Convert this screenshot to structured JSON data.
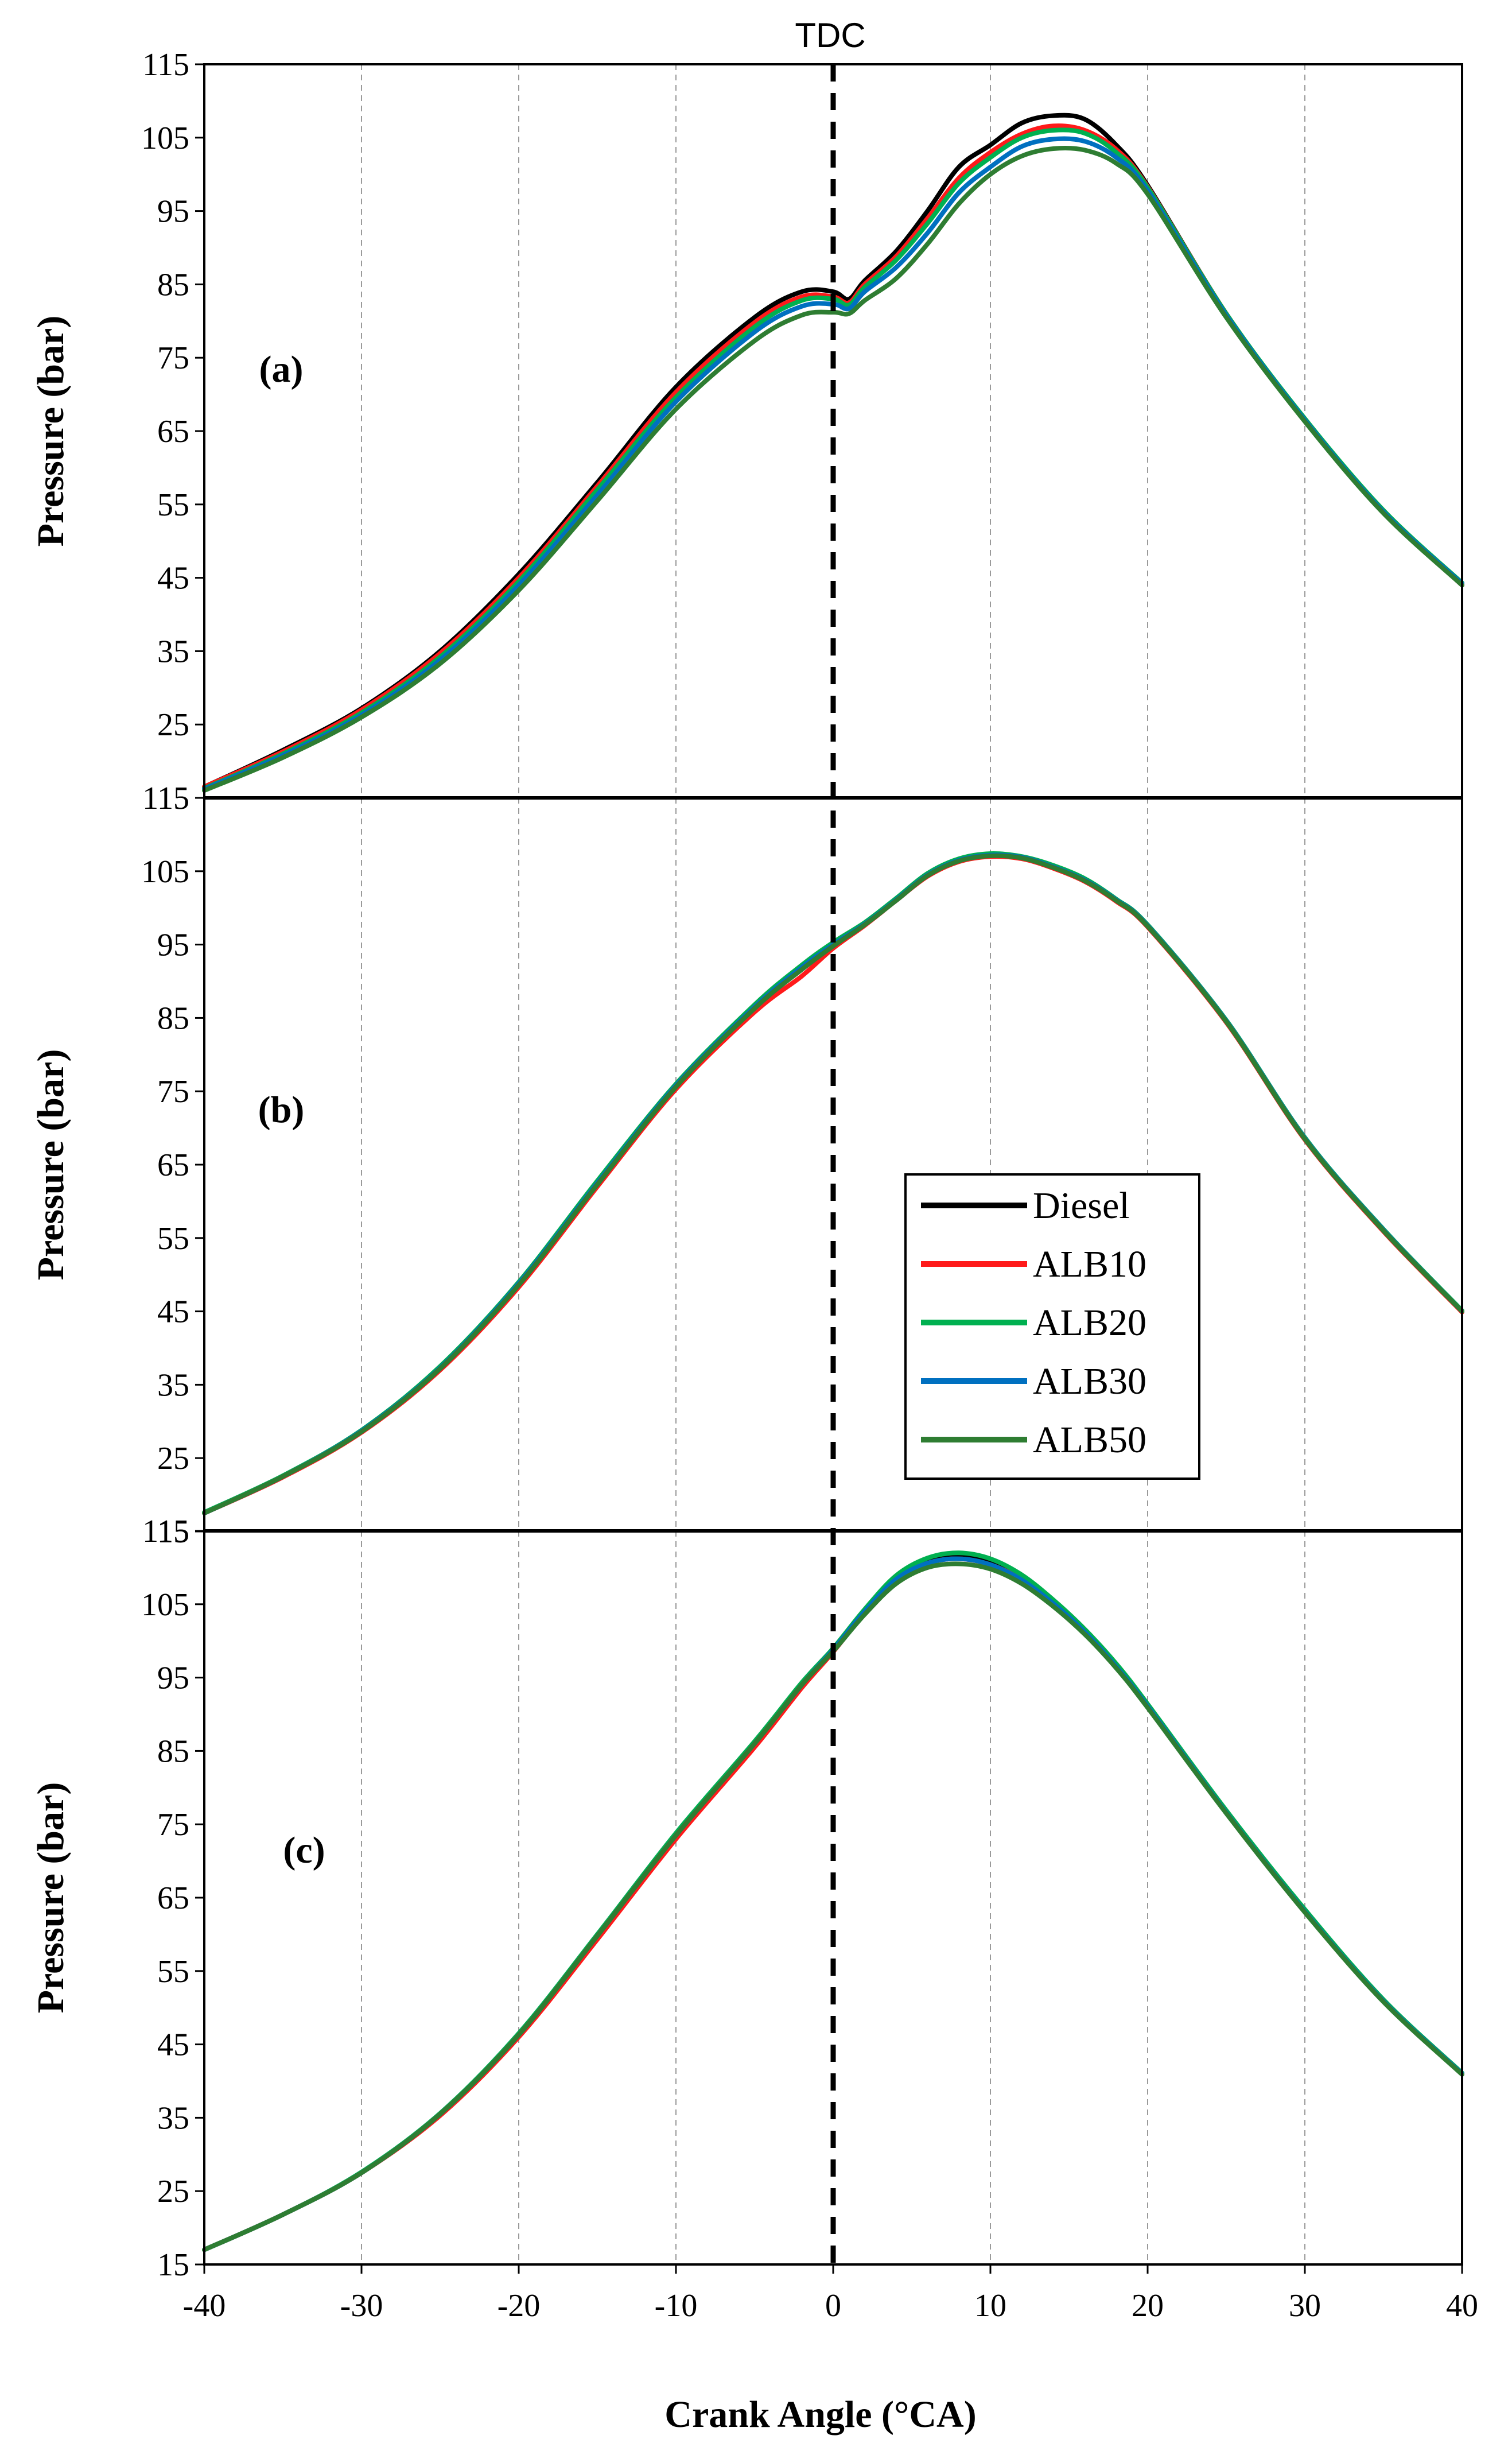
{
  "chart_data": {
    "type": "line",
    "title": "",
    "tdc_label": "TDC",
    "xlabel": "Crank Angle (°CA)",
    "ylabel": "Pressure (bar)",
    "xlim": [
      -40,
      40
    ],
    "ylim": [
      15,
      115
    ],
    "xticks": [
      -40,
      -30,
      -20,
      -10,
      0,
      10,
      20,
      30,
      40
    ],
    "yticks": [
      15,
      25,
      35,
      45,
      55,
      65,
      75,
      85,
      95,
      105,
      115
    ],
    "vertical_line_x": 0,
    "legend_position": "inside-right of panel (b)",
    "series_styles": [
      {
        "name": "Diesel",
        "color": "#000000"
      },
      {
        "name": "ALB10",
        "color": "#ff1a1a"
      },
      {
        "name": "ALB20",
        "color": "#00b050"
      },
      {
        "name": "ALB30",
        "color": "#0070c0"
      },
      {
        "name": "ALB50",
        "color": "#2e7d32"
      }
    ],
    "panels": [
      {
        "label": "(a)",
        "series": [
          {
            "name": "Diesel",
            "x": [
              -40,
              -35,
              -30,
              -25,
              -20,
              -15,
              -10,
              -5,
              -2,
              0,
              1,
              2,
              4,
              6,
              8,
              10,
              12,
              14,
              16,
              18,
              20,
              25,
              30,
              35,
              40
            ],
            "y": [
              16.5,
              21.5,
              27.2,
              35,
              45.5,
              58,
              71,
              80.5,
              84,
              84,
              83,
              85.5,
              89.5,
              95,
              101,
              104,
              107,
              108,
              107.5,
              104,
              98.5,
              81,
              66.5,
              54,
              44
            ]
          },
          {
            "name": "ALB10",
            "x": [
              -40,
              -35,
              -30,
              -25,
              -20,
              -15,
              -10,
              -5,
              -2,
              0,
              1,
              2,
              4,
              6,
              8,
              10,
              12,
              14,
              16,
              18,
              20,
              25,
              30,
              35,
              40
            ],
            "y": [
              16.5,
              21.3,
              27,
              34.7,
              45,
              57.5,
              70.3,
              79.8,
              83.3,
              83.3,
              82.5,
              85,
              88.8,
              94,
              99.5,
              103,
              105.5,
              106.6,
              106,
              103.4,
              98.3,
              81,
              66.6,
              54,
              44
            ]
          },
          {
            "name": "ALB20",
            "x": [
              -40,
              -35,
              -30,
              -25,
              -20,
              -15,
              -10,
              -5,
              -2,
              0,
              1,
              2,
              4,
              6,
              8,
              10,
              12,
              14,
              16,
              18,
              20,
              25,
              30,
              35,
              40
            ],
            "y": [
              16.3,
              21,
              26.6,
              34.2,
              44.5,
              57,
              69.6,
              79.2,
              82.8,
              83,
              82.2,
              84.6,
              88.3,
              93.3,
              98.8,
              102.3,
              105,
              106,
              105.6,
              103,
              98.2,
              81,
              66.7,
              54.2,
              44.3
            ]
          },
          {
            "name": "ALB30",
            "x": [
              -40,
              -35,
              -30,
              -25,
              -20,
              -15,
              -10,
              -5,
              -2,
              0,
              1,
              2,
              4,
              6,
              8,
              10,
              12,
              14,
              16,
              18,
              20,
              25,
              30,
              35,
              40
            ],
            "y": [
              16.2,
              20.8,
              26.3,
              33.8,
              44,
              56.3,
              69,
              78.5,
              82,
              82.3,
              81.7,
              84,
              87.3,
              92,
              97.5,
              101,
              103.8,
              104.8,
              104.5,
              102.3,
              97.8,
              80.8,
              66.5,
              54,
              44.2
            ]
          },
          {
            "name": "ALB50",
            "x": [
              -40,
              -35,
              -30,
              -25,
              -20,
              -15,
              -10,
              -5,
              -2,
              0,
              1,
              2,
              4,
              6,
              8,
              10,
              12,
              14,
              16,
              18,
              20,
              25,
              30,
              35,
              40
            ],
            "y": [
              16,
              20.5,
              26,
              33.3,
              43.3,
              55.5,
              68,
              77.3,
              80.8,
              81.2,
              81,
              82.8,
              85.8,
              90.5,
              96,
              100,
              102.5,
              103.5,
              103.3,
              101.5,
              97.3,
              80.5,
              66.3,
              53.8,
              44
            ]
          }
        ]
      },
      {
        "label": "(b)",
        "series": [
          {
            "name": "Diesel",
            "x": [
              -40,
              -35,
              -30,
              -25,
              -20,
              -15,
              -10,
              -5,
              -2,
              0,
              2,
              4,
              6,
              8,
              10,
              12,
              14,
              16,
              18,
              20,
              25,
              30,
              35,
              40
            ],
            "y": [
              17.5,
              22.5,
              28.7,
              37.3,
              48.8,
              62.5,
              75.8,
              86.5,
              91.8,
              95,
              97.8,
              101,
              104.4,
              106.4,
              107.1,
              106.8,
              105.5,
              103.7,
              101,
              97.5,
              84.5,
              68.5,
              56,
              45
            ]
          },
          {
            "name": "ALB10",
            "x": [
              -40,
              -35,
              -30,
              -25,
              -20,
              -15,
              -10,
              -5,
              -2,
              0,
              2,
              4,
              6,
              8,
              10,
              12,
              14,
              16,
              18,
              20,
              25,
              30,
              35,
              40
            ],
            "y": [
              17.5,
              22.4,
              28.5,
              37,
              48.3,
              62,
              75.3,
              85.8,
              90.7,
              94.5,
              97.6,
              101,
              104.3,
              106.3,
              107,
              106.7,
              105.4,
              103.6,
              100.9,
              97.4,
              84.4,
              68.4,
              55.9,
              44.9
            ]
          },
          {
            "name": "ALB20",
            "x": [
              -40,
              -35,
              -30,
              -25,
              -20,
              -15,
              -10,
              -5,
              -2,
              0,
              2,
              4,
              6,
              8,
              10,
              12,
              14,
              16,
              18,
              20,
              25,
              30,
              35,
              40
            ],
            "y": [
              17.6,
              22.6,
              28.8,
              37.5,
              49,
              62.8,
              76,
              86.8,
              92.2,
              95.3,
              98,
              101.3,
              104.7,
              106.7,
              107.4,
              107,
              105.8,
              104,
              101.2,
              97.7,
              84.7,
              68.7,
              56.2,
              45.1
            ]
          },
          {
            "name": "ALB30",
            "x": [
              -40,
              -35,
              -30,
              -25,
              -20,
              -15,
              -10,
              -5,
              -2,
              0,
              2,
              4,
              6,
              8,
              10,
              12,
              14,
              16,
              18,
              20,
              25,
              30,
              35,
              40
            ],
            "y": [
              17.5,
              22.5,
              28.7,
              37.3,
              48.8,
              62.5,
              75.8,
              86.5,
              91.9,
              95,
              97.8,
              101.1,
              104.5,
              106.5,
              107.2,
              106.9,
              105.6,
              103.8,
              101.1,
              97.6,
              84.6,
              68.6,
              56.1,
              45
            ]
          },
          {
            "name": "ALB50",
            "x": [
              -40,
              -35,
              -30,
              -25,
              -20,
              -15,
              -10,
              -5,
              -2,
              0,
              2,
              4,
              6,
              8,
              10,
              12,
              14,
              16,
              18,
              20,
              25,
              30,
              35,
              40
            ],
            "y": [
              17.5,
              22.5,
              28.6,
              37.2,
              48.6,
              62.3,
              75.6,
              86.3,
              91.6,
              94.8,
              97.7,
              101,
              104.4,
              106.4,
              107.1,
              106.8,
              105.5,
              103.7,
              101,
              97.5,
              84.5,
              68.5,
              56,
              45
            ]
          }
        ]
      },
      {
        "label": "(c)",
        "series": [
          {
            "name": "Diesel",
            "x": [
              -40,
              -35,
              -30,
              -25,
              -20,
              -15,
              -10,
              -5,
              -2,
              0,
              2,
              4,
              6,
              8,
              10,
              12,
              14,
              16,
              18,
              20,
              25,
              30,
              35,
              40
            ],
            "y": [
              17,
              21.8,
              27.5,
              35.5,
              46.3,
              59.8,
              73.5,
              86,
              94,
              98.8,
              104,
              108.5,
              110.8,
              111.5,
              110.8,
              108.7,
              105.4,
              101.5,
              96.8,
              91.3,
              76.8,
              63.3,
              51,
              41
            ]
          },
          {
            "name": "ALB10",
            "x": [
              -40,
              -35,
              -30,
              -25,
              -20,
              -15,
              -10,
              -5,
              -2,
              0,
              2,
              4,
              6,
              8,
              10,
              12,
              14,
              16,
              18,
              20,
              25,
              30,
              35,
              40
            ],
            "y": [
              17,
              21.8,
              27.5,
              35.3,
              46,
              59.3,
              73,
              85.5,
              93.6,
              98.5,
              103.8,
              108.3,
              110.6,
              111.2,
              110.4,
              108.4,
              105.2,
              101.3,
              96.6,
              91.2,
              76.7,
              63.2,
              50.9,
              41
            ]
          },
          {
            "name": "ALB20",
            "x": [
              -40,
              -35,
              -30,
              -25,
              -20,
              -15,
              -10,
              -5,
              -2,
              0,
              2,
              4,
              6,
              8,
              10,
              12,
              14,
              16,
              18,
              20,
              25,
              30,
              35,
              40
            ],
            "y": [
              17,
              21.8,
              27.6,
              35.6,
              46.5,
              60,
              73.8,
              86.3,
              94.3,
              99,
              104.3,
              108.9,
              111.3,
              112,
              111.2,
              109,
              105.6,
              101.6,
              96.9,
              91.4,
              76.9,
              63.4,
              51.1,
              41.1
            ]
          },
          {
            "name": "ALB30",
            "x": [
              -40,
              -35,
              -30,
              -25,
              -20,
              -15,
              -10,
              -5,
              -2,
              0,
              2,
              4,
              6,
              8,
              10,
              12,
              14,
              16,
              18,
              20,
              25,
              30,
              35,
              40
            ],
            "y": [
              17,
              21.8,
              27.5,
              35.5,
              46.3,
              59.8,
              73.5,
              86,
              94,
              98.8,
              104,
              108.4,
              110.6,
              111.2,
              110.4,
              108.3,
              105.1,
              101.2,
              96.5,
              91.1,
              76.6,
              63.1,
              50.9,
              41
            ]
          },
          {
            "name": "ALB50",
            "x": [
              -40,
              -35,
              -30,
              -25,
              -20,
              -15,
              -10,
              -5,
              -2,
              0,
              2,
              4,
              6,
              8,
              10,
              12,
              14,
              16,
              18,
              20,
              25,
              30,
              35,
              40
            ],
            "y": [
              17,
              21.8,
              27.5,
              35.5,
              46.3,
              59.8,
              73.5,
              86,
              94,
              98.6,
              103.6,
              107.8,
              110,
              110.5,
              109.8,
              107.8,
              104.7,
              100.9,
              96.3,
              90.9,
              76.5,
              63,
              50.8,
              40.9
            ]
          }
        ]
      }
    ]
  }
}
